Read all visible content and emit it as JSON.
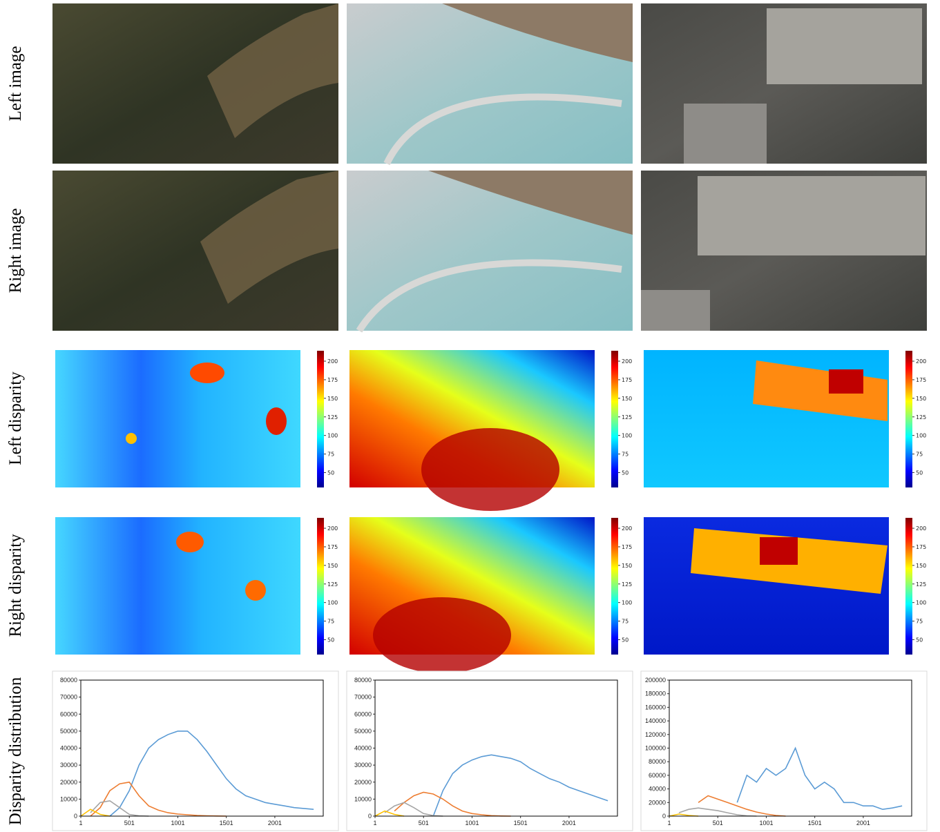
{
  "row_labels": [
    "Left image",
    "Right image",
    "Left disparity",
    "Right disparity",
    "Disparity distribution"
  ],
  "colorbar": {
    "lim": [
      30,
      214
    ],
    "ticks": [
      50,
      75,
      100,
      125,
      150,
      175,
      200
    ]
  },
  "chart_data": [
    {
      "type": "line",
      "x": [
        1,
        101,
        201,
        301,
        401,
        501,
        601,
        701,
        801,
        901,
        1001,
        1101,
        1201,
        1301,
        1401,
        1501,
        1601,
        1701,
        1801,
        1901,
        2001,
        2101,
        2201,
        2301,
        2401
      ],
      "xlim": [
        1,
        2500
      ],
      "xticks": [
        1,
        501,
        1001,
        1501,
        2001
      ],
      "ylim": [
        0,
        80000
      ],
      "yticks": [
        0,
        10000,
        20000,
        30000,
        40000,
        50000,
        60000,
        70000,
        80000
      ],
      "series": [
        {
          "color": "#5b9bd5",
          "values": [
            null,
            null,
            null,
            0,
            5000,
            15000,
            30000,
            40000,
            45000,
            48000,
            50000,
            50000,
            45000,
            38000,
            30000,
            22000,
            16000,
            12000,
            10000,
            8000,
            7000,
            6000,
            5000,
            4500,
            4000
          ]
        },
        {
          "color": "#ed7d31",
          "values": [
            null,
            0,
            5000,
            15000,
            19000,
            20000,
            12000,
            6000,
            3500,
            2000,
            1200,
            800,
            400,
            200,
            100,
            0,
            null,
            null,
            null,
            null,
            null,
            null,
            null,
            null,
            null
          ]
        },
        {
          "color": "#a5a5a5",
          "values": [
            null,
            2000,
            8000,
            9000,
            5000,
            1000,
            200,
            0,
            null,
            null,
            null,
            null,
            null,
            null,
            null,
            null,
            null,
            null,
            null,
            null,
            null,
            null,
            null,
            null,
            null
          ]
        },
        {
          "color": "#ffc000",
          "values": [
            0,
            4000,
            1000,
            0,
            null,
            null,
            null,
            null,
            null,
            null,
            null,
            null,
            null,
            null,
            null,
            null,
            null,
            null,
            null,
            null,
            null,
            null,
            null,
            null,
            null
          ]
        }
      ]
    },
    {
      "type": "line",
      "x": [
        1,
        101,
        201,
        301,
        401,
        501,
        601,
        701,
        801,
        901,
        1001,
        1101,
        1201,
        1301,
        1401,
        1501,
        1601,
        1701,
        1801,
        1901,
        2001,
        2101,
        2201,
        2301,
        2401
      ],
      "xlim": [
        1,
        2500
      ],
      "xticks": [
        1,
        501,
        1001,
        1501,
        2001
      ],
      "ylim": [
        0,
        80000
      ],
      "yticks": [
        0,
        10000,
        20000,
        30000,
        40000,
        50000,
        60000,
        70000,
        80000
      ],
      "series": [
        {
          "color": "#5b9bd5",
          "values": [
            null,
            null,
            null,
            null,
            null,
            null,
            0,
            15000,
            25000,
            30000,
            33000,
            35000,
            36000,
            35000,
            34000,
            32000,
            28000,
            25000,
            22000,
            20000,
            17000,
            15000,
            13000,
            11000,
            9000
          ]
        },
        {
          "color": "#ed7d31",
          "values": [
            null,
            null,
            3000,
            8000,
            12000,
            14000,
            13000,
            10000,
            6000,
            3000,
            1500,
            800,
            300,
            100,
            0,
            null,
            null,
            null,
            null,
            null,
            null,
            null,
            null,
            null,
            null
          ]
        },
        {
          "color": "#a5a5a5",
          "values": [
            null,
            2000,
            6000,
            8000,
            5000,
            1500,
            300,
            0,
            null,
            null,
            null,
            null,
            null,
            null,
            null,
            null,
            null,
            null,
            null,
            null,
            null,
            null,
            null,
            null,
            null
          ]
        },
        {
          "color": "#ffc000",
          "values": [
            0,
            3000,
            1000,
            0,
            null,
            null,
            null,
            null,
            null,
            null,
            null,
            null,
            null,
            null,
            null,
            null,
            null,
            null,
            null,
            null,
            null,
            null,
            null,
            null,
            null
          ]
        }
      ]
    },
    {
      "type": "line",
      "x": [
        1,
        101,
        201,
        301,
        401,
        501,
        601,
        701,
        801,
        901,
        1001,
        1101,
        1201,
        1301,
        1401,
        1501,
        1601,
        1701,
        1801,
        1901,
        2001,
        2101,
        2201,
        2301,
        2401
      ],
      "xlim": [
        1,
        2500
      ],
      "xticks": [
        1,
        501,
        1001,
        1501,
        2001
      ],
      "ylim": [
        0,
        200000
      ],
      "yticks": [
        0,
        20000,
        40000,
        60000,
        80000,
        100000,
        120000,
        140000,
        160000,
        180000,
        200000
      ],
      "series": [
        {
          "color": "#5b9bd5",
          "values": [
            null,
            null,
            null,
            null,
            null,
            null,
            null,
            20000,
            60000,
            50000,
            70000,
            60000,
            70000,
            100000,
            60000,
            40000,
            50000,
            40000,
            20000,
            20000,
            15000,
            15000,
            10000,
            12000,
            15000
          ]
        },
        {
          "color": "#ed7d31",
          "values": [
            null,
            null,
            null,
            20000,
            30000,
            25000,
            20000,
            15000,
            10000,
            6000,
            3000,
            1000,
            0,
            null,
            null,
            null,
            null,
            null,
            null,
            null,
            null,
            null,
            null,
            null,
            null
          ]
        },
        {
          "color": "#a5a5a5",
          "values": [
            null,
            5000,
            10000,
            12000,
            10000,
            8000,
            5000,
            2000,
            500,
            0,
            null,
            null,
            null,
            null,
            null,
            null,
            null,
            null,
            null,
            null,
            null,
            null,
            null,
            null,
            null
          ]
        },
        {
          "color": "#ffc000",
          "values": [
            0,
            3000,
            1000,
            0,
            null,
            null,
            null,
            null,
            null,
            null,
            null,
            null,
            null,
            null,
            null,
            null,
            null,
            null,
            null,
            null,
            null,
            null,
            null,
            null,
            null
          ]
        }
      ]
    }
  ]
}
